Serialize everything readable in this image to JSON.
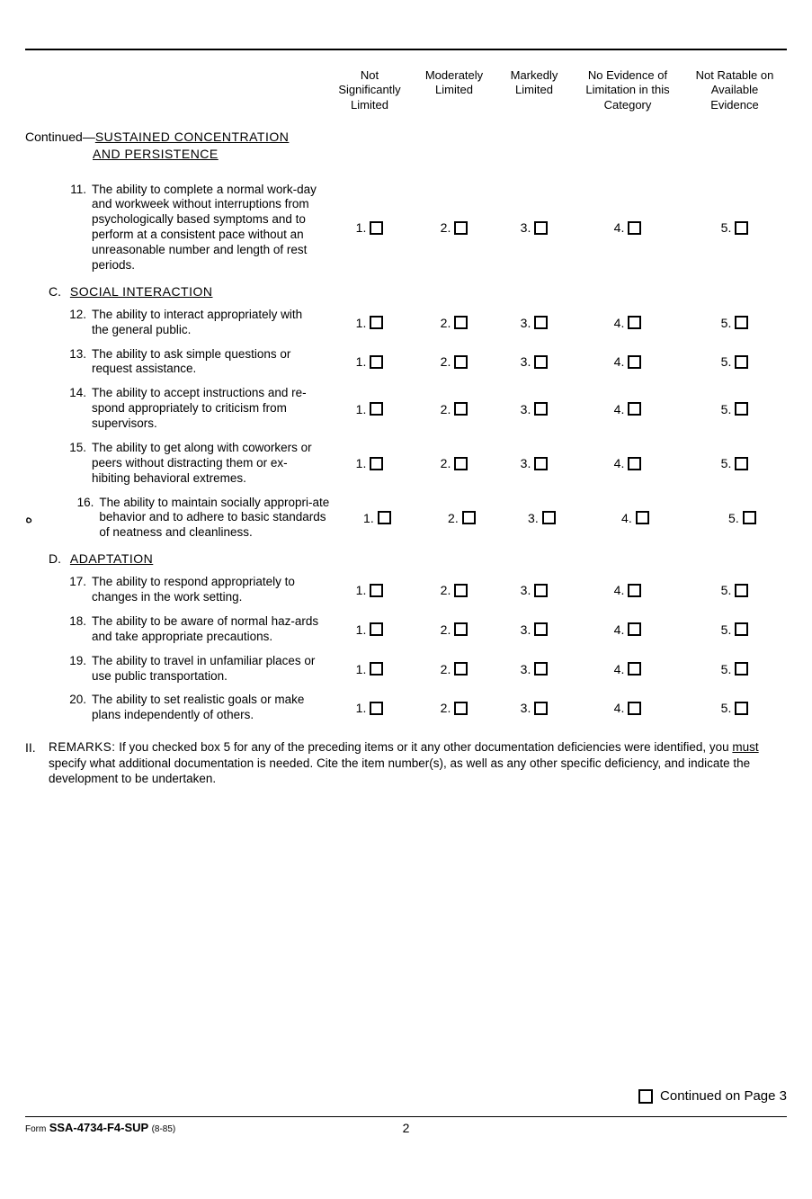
{
  "columns": {
    "c1": "Not\nSignificantly\nLimited",
    "c2": "Moderately\nLimited",
    "c3": "Markedly\nLimited",
    "c4": "No Evidence of\nLimitation in this\nCategory",
    "c5": "Not Ratable on\nAvailable\nEvidence"
  },
  "continued": {
    "prefix": "Continued—",
    "line1": "SUSTAINED CONCENTRATION",
    "line2": "AND PERSISTENCE"
  },
  "sections": {
    "c": {
      "letter": "C.",
      "title": "SOCIAL INTERACTION"
    },
    "d": {
      "letter": "D.",
      "title": "ADAPTATION"
    }
  },
  "items": {
    "i11": {
      "num": "11.",
      "text": "The ability to complete a normal work-day and workweek without interruptions from psychologically based symptoms and to perform at a consistent pace without an unreasonable number and length of rest periods."
    },
    "i12": {
      "num": "12.",
      "text": "The ability to interact appropriately with the general public."
    },
    "i13": {
      "num": "13.",
      "text": "The ability to ask simple questions or request assistance."
    },
    "i14": {
      "num": "14.",
      "text": "The ability to accept instructions and re-spond appropriately to criticism from supervisors."
    },
    "i15": {
      "num": "15.",
      "text": "The ability to get along with coworkers or peers without distracting them or ex-hibiting behavioral extremes."
    },
    "i16": {
      "num": "16.",
      "text": "The ability to maintain socially appropri-ate behavior and to adhere to basic standards of neatness and cleanliness."
    },
    "i17": {
      "num": "17.",
      "text": "The ability to respond appropriately to changes in the work setting."
    },
    "i18": {
      "num": "18.",
      "text": "The ability to be aware of normal haz-ards and take appropriate precautions."
    },
    "i19": {
      "num": "19.",
      "text": "The ability to travel in unfamiliar places or use public transportation."
    },
    "i20": {
      "num": "20.",
      "text": "The ability to set realistic goals or make plans independently of others."
    }
  },
  "checknums": {
    "n1": "1.",
    "n2": "2.",
    "n3": "3.",
    "n4": "4.",
    "n5": "5."
  },
  "remarks": {
    "roman": "II.",
    "lead": "REMARKS:",
    "body1": " If you checked box 5 for any of the preceding items or it any other documentation deficiencies were identified, you ",
    "must": "must",
    "body2": " specify what additional documentation is needed. Cite the item number(s), as well as any other specific deficiency, and indicate the development to be undertaken."
  },
  "footer": {
    "continued": "Continued on Page 3",
    "form_prefix": "Form",
    "form_code": "SSA-4734-F4-SUP",
    "form_date": "(8-85)",
    "page": "2"
  }
}
